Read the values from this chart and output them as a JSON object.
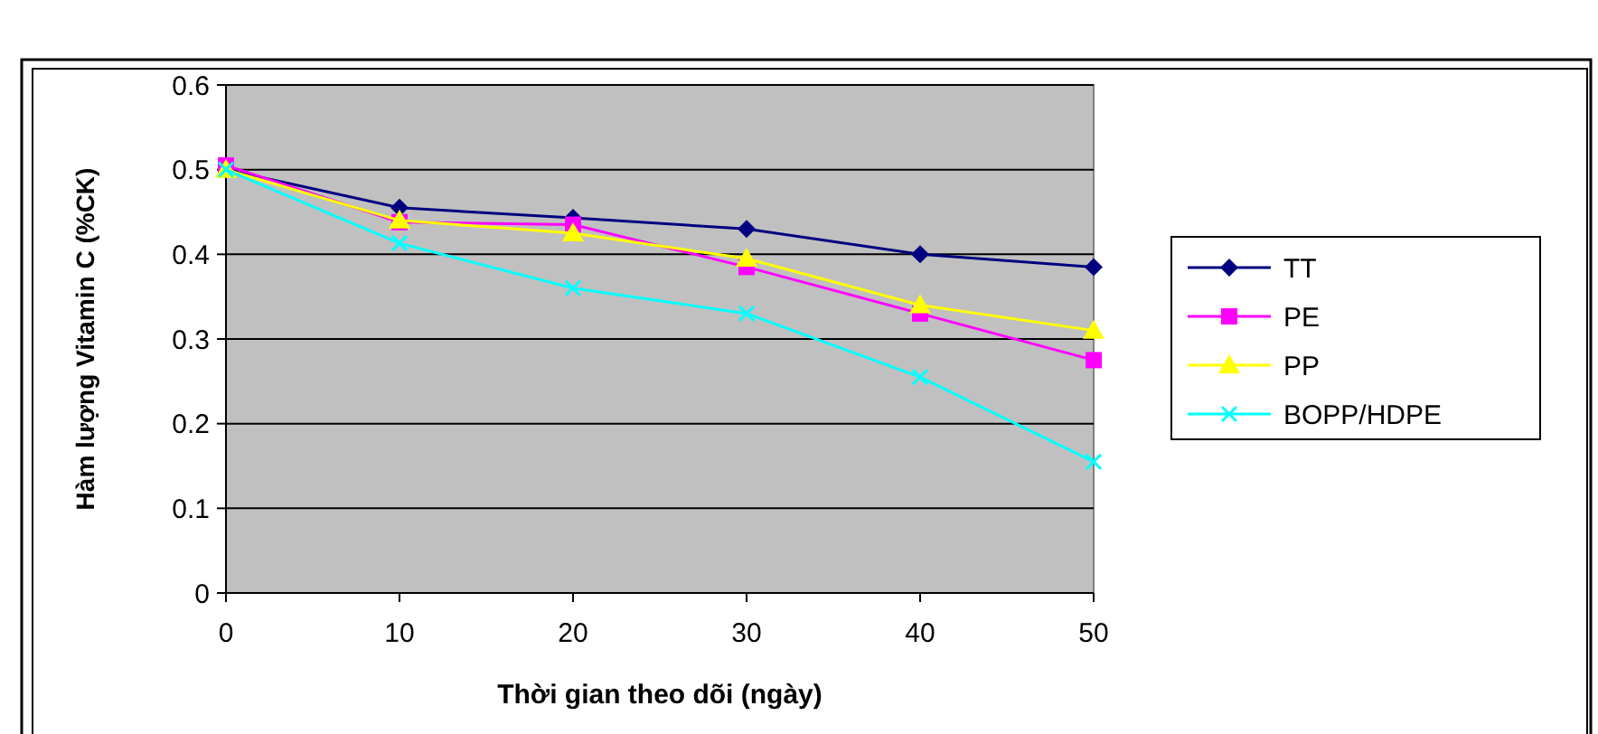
{
  "chart_data": {
    "type": "line",
    "xlabel": "Thời gian theo dõi (ngày)",
    "ylabel": "Hàm lượng Vitamin C (%CK)",
    "x": [
      0,
      10,
      20,
      30,
      40,
      50
    ],
    "xlim": [
      0,
      50
    ],
    "xticks": [
      0,
      10,
      20,
      30,
      40,
      50
    ],
    "ylim": [
      0,
      0.6
    ],
    "yticks": [
      0,
      0.1,
      0.2,
      0.3,
      0.4,
      0.5,
      0.6
    ],
    "grid": "y",
    "legend": "right",
    "series": [
      {
        "name": "TT",
        "color": "#000080",
        "marker": "diamond",
        "values": [
          0.5,
          0.455,
          0.443,
          0.43,
          0.4,
          0.385
        ]
      },
      {
        "name": "PE",
        "color": "#ff00ff",
        "marker": "square",
        "values": [
          0.505,
          0.438,
          0.435,
          0.385,
          0.33,
          0.275
        ]
      },
      {
        "name": "PP",
        "color": "#ffff00",
        "marker": "triangle",
        "values": [
          0.5,
          0.44,
          0.425,
          0.395,
          0.34,
          0.31
        ]
      },
      {
        "name": "BOPP/HDPE",
        "color": "#00ffff",
        "marker": "cross",
        "values": [
          0.5,
          0.413,
          0.36,
          0.33,
          0.255,
          0.155
        ]
      }
    ]
  }
}
